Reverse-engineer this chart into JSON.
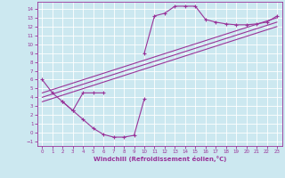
{
  "xlabel": "Windchill (Refroidissement éolien,°C)",
  "bg_color": "#cce8f0",
  "line_color": "#993399",
  "grid_color": "#ffffff",
  "xlim": [
    -0.5,
    23.5
  ],
  "ylim": [
    -1.5,
    14.8
  ],
  "xticks": [
    0,
    1,
    2,
    3,
    4,
    5,
    6,
    7,
    8,
    9,
    10,
    11,
    12,
    13,
    14,
    15,
    16,
    17,
    18,
    19,
    20,
    21,
    22,
    23
  ],
  "yticks": [
    -1,
    0,
    1,
    2,
    3,
    4,
    5,
    6,
    7,
    8,
    9,
    10,
    11,
    12,
    13,
    14
  ],
  "curves": [
    {
      "x": [
        0,
        1,
        2,
        3,
        4,
        5,
        6
      ],
      "y": [
        6.0,
        4.5,
        3.5,
        2.5,
        4.5,
        4.5,
        4.5
      ]
    },
    {
      "x": [
        2,
        3,
        4,
        5,
        6,
        7,
        8,
        9,
        10
      ],
      "y": [
        3.5,
        2.5,
        1.5,
        0.5,
        -0.2,
        -0.5,
        -0.5,
        -0.3,
        3.8
      ]
    },
    {
      "x": [
        10,
        11,
        12,
        13,
        14,
        15,
        16,
        17,
        18,
        19,
        20,
        21,
        22,
        23
      ],
      "y": [
        9.0,
        13.2,
        13.5,
        14.3,
        14.3,
        14.3,
        12.8,
        12.5,
        12.3,
        12.2,
        12.2,
        12.3,
        12.5,
        13.2
      ]
    }
  ],
  "straight_lines": [
    {
      "x": [
        0,
        23
      ],
      "y": [
        4.5,
        13.0
      ]
    },
    {
      "x": [
        0,
        23
      ],
      "y": [
        4.0,
        12.5
      ]
    },
    {
      "x": [
        0,
        23
      ],
      "y": [
        3.5,
        12.0
      ]
    }
  ]
}
